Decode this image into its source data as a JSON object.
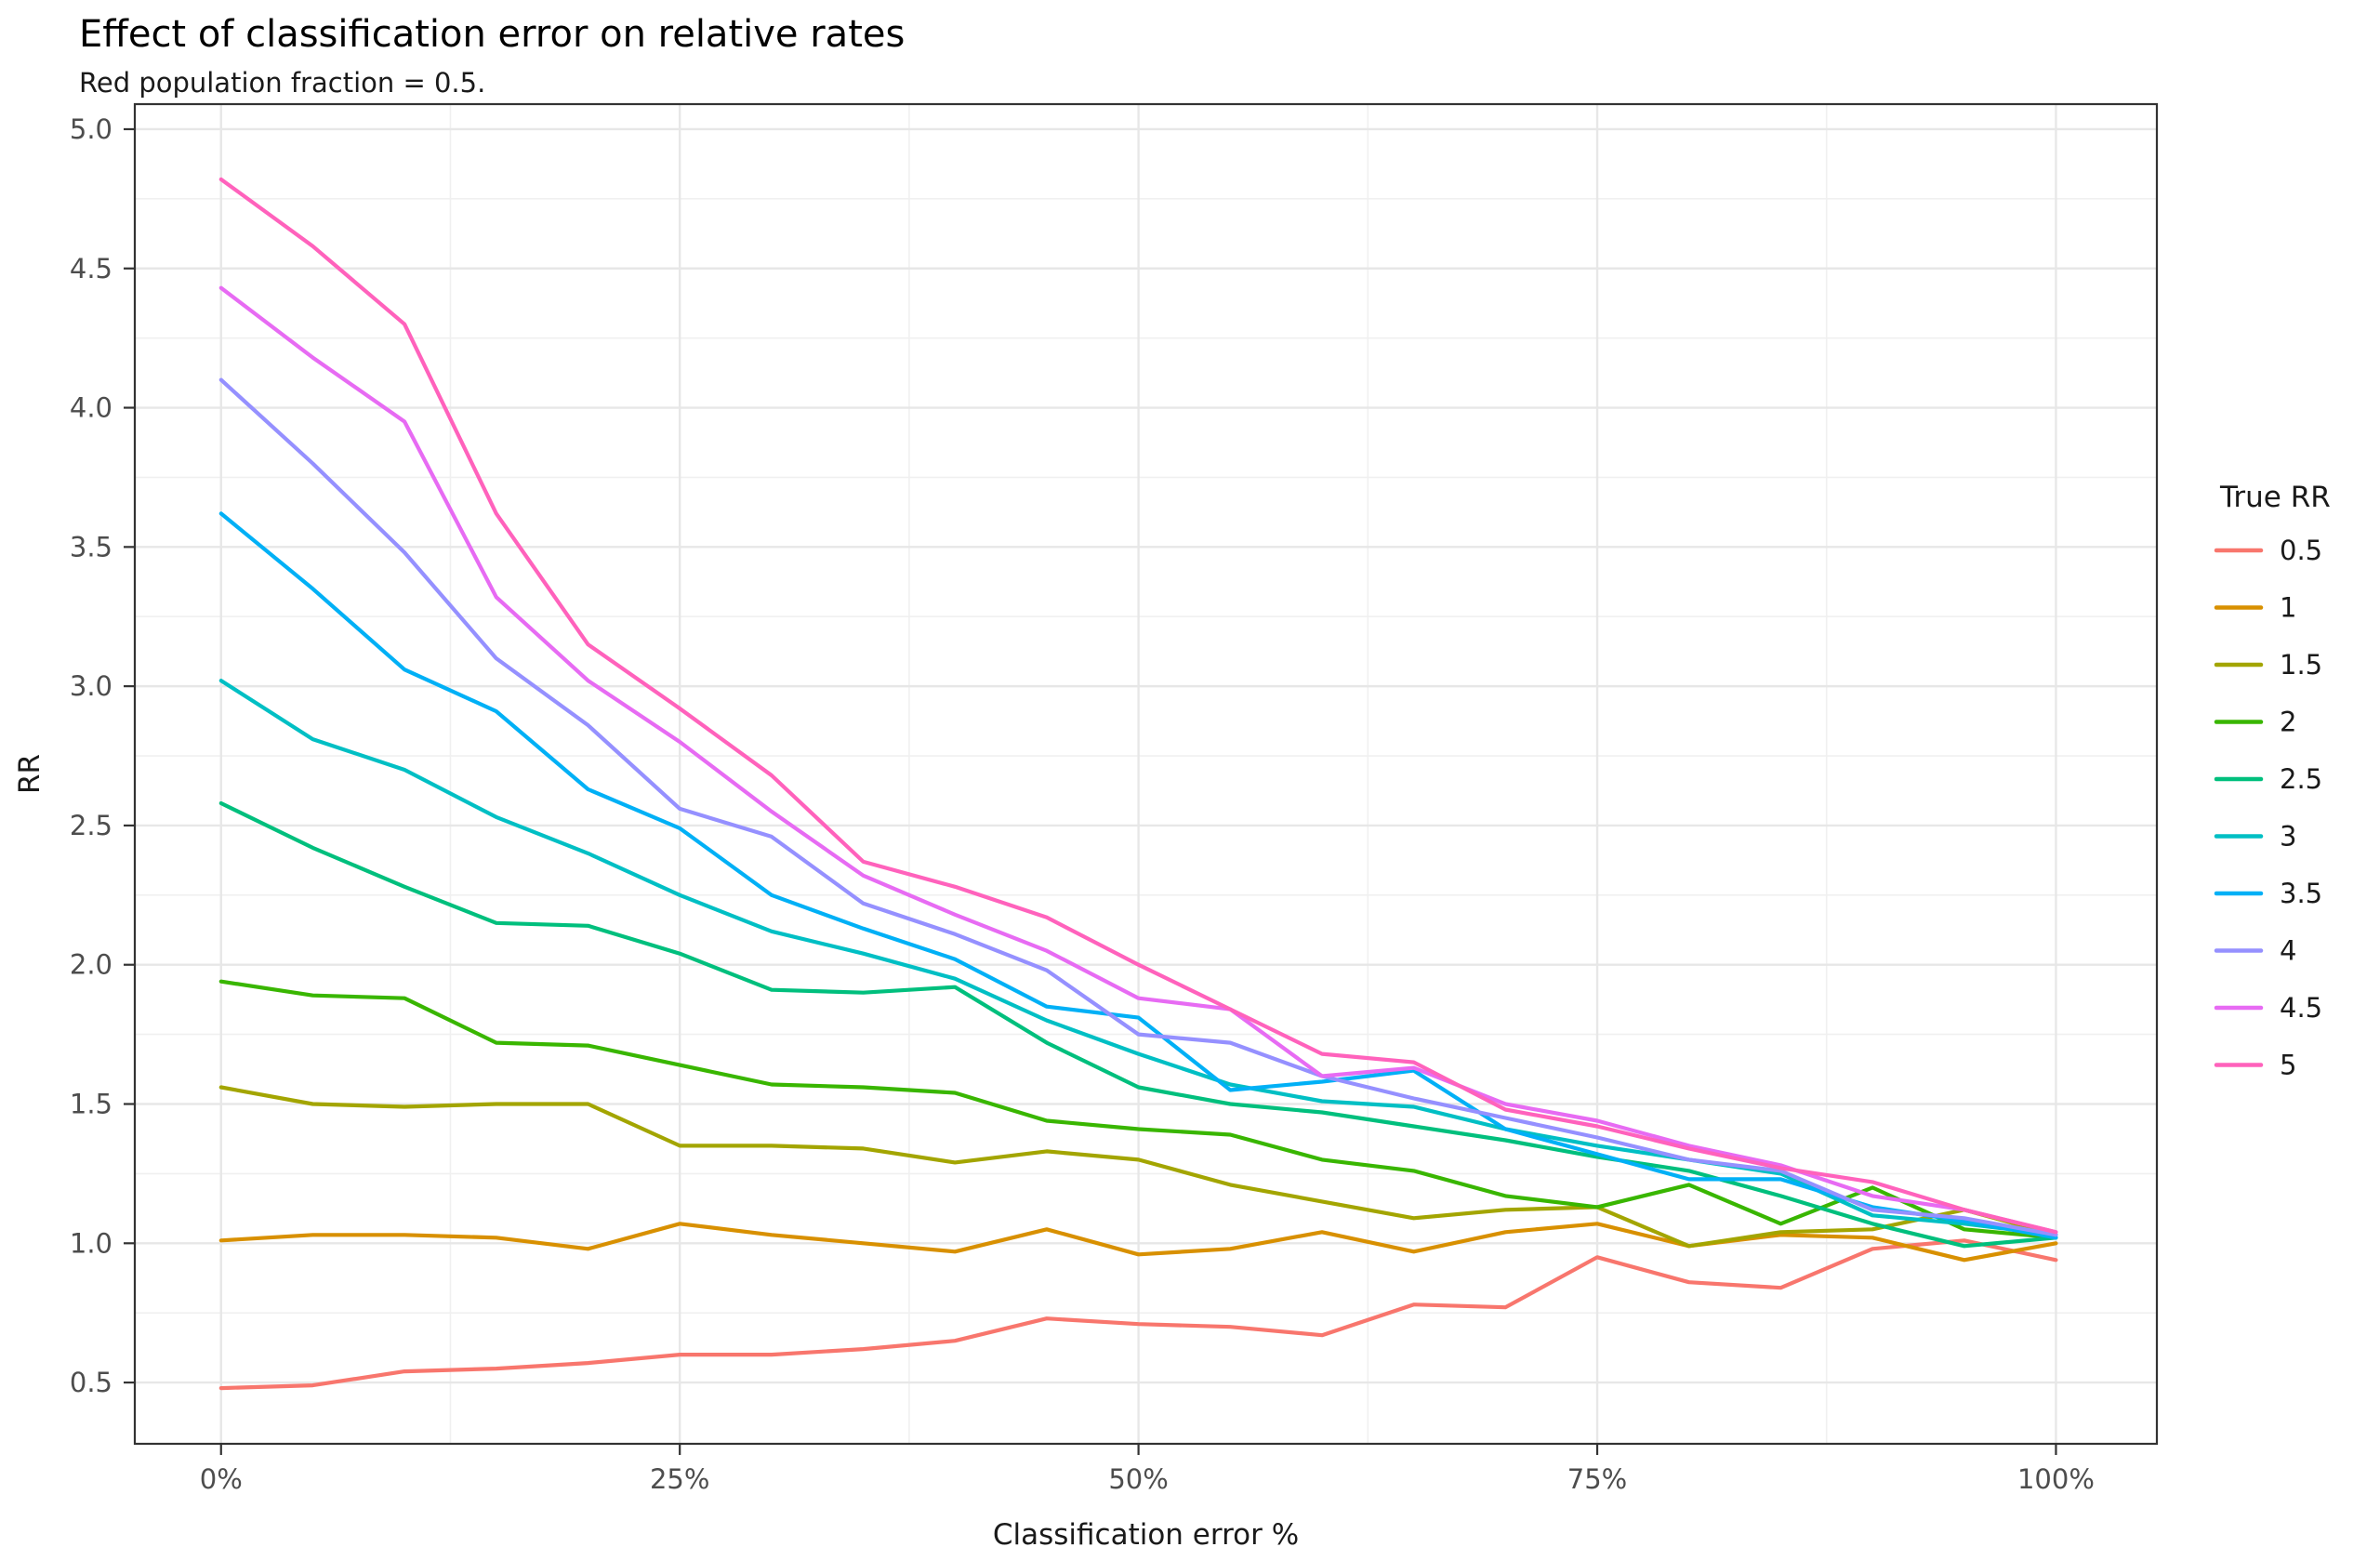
{
  "chart_data": {
    "type": "line",
    "title": "Effect of classification error on relative rates",
    "subtitle": "Red population fraction = 0.5.",
    "xlabel": "Classification error %",
    "ylabel": "RR",
    "legend_title": "True RR",
    "legend_position": "right",
    "grid": "major+minor",
    "x": [
      0,
      5,
      10,
      15,
      20,
      25,
      30,
      35,
      40,
      45,
      50,
      55,
      60,
      65,
      70,
      75,
      80,
      85,
      90,
      95,
      100
    ],
    "x_ticks": {
      "values": [
        0,
        25,
        50,
        75,
        100
      ],
      "labels": [
        "0%",
        "25%",
        "50%",
        "75%",
        "100%"
      ]
    },
    "y_ticks": {
      "values": [
        0.5,
        1.0,
        1.5,
        2.0,
        2.5,
        3.0,
        3.5,
        4.0,
        4.5,
        5.0
      ],
      "labels": [
        "0.5",
        "1.0",
        "1.5",
        "2.0",
        "2.5",
        "3.0",
        "3.5",
        "4.0",
        "4.5",
        "5.0"
      ]
    },
    "y_minor_ticks": [
      0.75,
      1.25,
      1.75,
      2.25,
      2.75,
      3.25,
      3.75,
      4.25,
      4.75
    ],
    "x_minor_ticks": [
      12.5,
      37.5,
      62.5,
      87.5
    ],
    "xlim": [
      -4.7,
      105.5
    ],
    "ylim": [
      0.28,
      5.09
    ],
    "series": [
      {
        "name": "0.5",
        "true_rr": 0.5,
        "color": "#F8766D",
        "values": [
          0.48,
          0.49,
          0.54,
          0.55,
          0.57,
          0.6,
          0.6,
          0.62,
          0.65,
          0.73,
          0.71,
          0.7,
          0.67,
          0.78,
          0.77,
          0.95,
          0.86,
          0.84,
          0.98,
          1.01,
          0.94
        ]
      },
      {
        "name": "1",
        "true_rr": 1,
        "color": "#D89000",
        "values": [
          1.01,
          1.03,
          1.03,
          1.02,
          0.98,
          1.07,
          1.03,
          1.0,
          0.97,
          1.05,
          0.96,
          0.98,
          1.04,
          0.97,
          1.04,
          1.07,
          0.99,
          1.03,
          1.02,
          0.94,
          1.0
        ]
      },
      {
        "name": "1.5",
        "true_rr": 1.5,
        "color": "#A3A500",
        "values": [
          1.56,
          1.5,
          1.49,
          1.5,
          1.5,
          1.35,
          1.35,
          1.34,
          1.29,
          1.33,
          1.3,
          1.21,
          1.15,
          1.09,
          1.12,
          1.13,
          0.99,
          1.04,
          1.05,
          1.12,
          1.03
        ]
      },
      {
        "name": "2",
        "true_rr": 2,
        "color": "#39B600",
        "values": [
          1.94,
          1.89,
          1.88,
          1.72,
          1.71,
          1.64,
          1.57,
          1.56,
          1.54,
          1.44,
          1.41,
          1.39,
          1.3,
          1.26,
          1.17,
          1.13,
          1.21,
          1.07,
          1.2,
          1.05,
          1.02
        ]
      },
      {
        "name": "2.5",
        "true_rr": 2.5,
        "color": "#00BF7D",
        "values": [
          2.58,
          2.42,
          2.28,
          2.15,
          2.14,
          2.04,
          1.91,
          1.9,
          1.92,
          1.72,
          1.56,
          1.5,
          1.47,
          1.42,
          1.37,
          1.31,
          1.26,
          1.17,
          1.07,
          0.99,
          1.02
        ]
      },
      {
        "name": "3",
        "true_rr": 3,
        "color": "#00BFC4",
        "values": [
          3.02,
          2.81,
          2.7,
          2.53,
          2.4,
          2.25,
          2.12,
          2.04,
          1.95,
          1.8,
          1.68,
          1.57,
          1.51,
          1.49,
          1.41,
          1.35,
          1.3,
          1.25,
          1.1,
          1.07,
          1.03
        ]
      },
      {
        "name": "3.5",
        "true_rr": 3.5,
        "color": "#00B0F6",
        "values": [
          3.62,
          3.35,
          3.06,
          2.91,
          2.63,
          2.49,
          2.25,
          2.13,
          2.02,
          1.85,
          1.81,
          1.55,
          1.58,
          1.62,
          1.41,
          1.32,
          1.23,
          1.23,
          1.13,
          1.08,
          1.02
        ]
      },
      {
        "name": "4",
        "true_rr": 4,
        "color": "#9590FF",
        "values": [
          4.1,
          3.8,
          3.48,
          3.1,
          2.86,
          2.56,
          2.46,
          2.22,
          2.11,
          1.98,
          1.75,
          1.72,
          1.6,
          1.52,
          1.45,
          1.38,
          1.3,
          1.26,
          1.12,
          1.09,
          1.03
        ]
      },
      {
        "name": "4.5",
        "true_rr": 4.5,
        "color": "#E76BF3",
        "values": [
          4.43,
          4.18,
          3.95,
          3.32,
          3.02,
          2.8,
          2.55,
          2.32,
          2.18,
          2.05,
          1.88,
          1.84,
          1.6,
          1.63,
          1.5,
          1.44,
          1.35,
          1.28,
          1.17,
          1.12,
          1.04
        ]
      },
      {
        "name": "5",
        "true_rr": 5,
        "color": "#FF62BC",
        "values": [
          4.82,
          4.58,
          4.3,
          3.62,
          3.15,
          2.92,
          2.68,
          2.37,
          2.28,
          2.17,
          2.0,
          1.84,
          1.68,
          1.65,
          1.48,
          1.42,
          1.34,
          1.27,
          1.22,
          1.12,
          1.04
        ]
      }
    ]
  },
  "colors": {
    "background": "#ffffff",
    "panel_border": "#333333",
    "grid_major": "#e7e7e7",
    "grid_minor": "#f0f0f0",
    "axis_text": "#4d4d4d",
    "axis_title": "#1a1a1a",
    "tick_mark": "#333333",
    "legend_text": "#1a1a1a"
  }
}
